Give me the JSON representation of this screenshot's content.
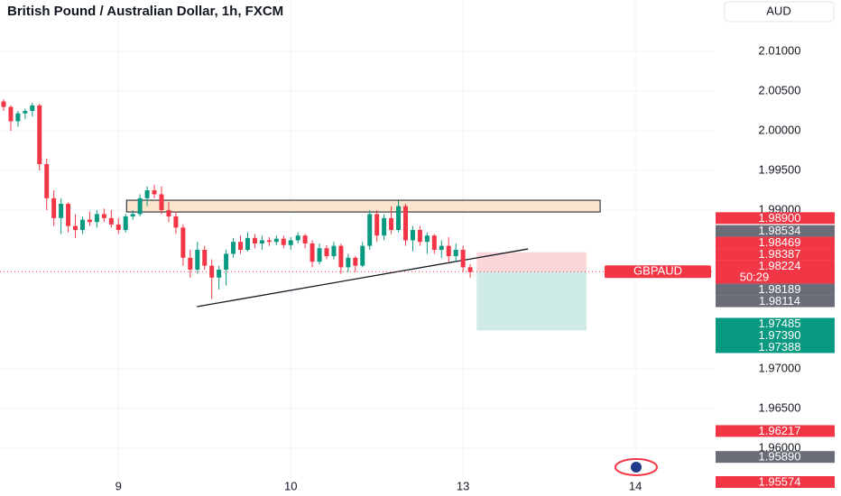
{
  "chart_data": {
    "type": "candlestick",
    "title": "British Pound / Australian Dollar, 1h, FXCM",
    "currency": "AUD",
    "symbol": "GBPAUD",
    "countdown": "50:29",
    "current_price": 1.98224,
    "up_color": "#089981",
    "down_color": "#f23645",
    "xlim": [
      -16.5,
      82.8
    ],
    "ylim": [
      1.95398,
      2.01648
    ],
    "xticks": [
      {
        "value": 0,
        "label": "9"
      },
      {
        "value": 24,
        "label": "10"
      },
      {
        "value": 48,
        "label": "13"
      },
      {
        "value": 72,
        "label": "14"
      }
    ],
    "yticks": [
      {
        "value": 2.01,
        "label": "2.01000"
      },
      {
        "value": 2.005,
        "label": "2.00500"
      },
      {
        "value": 2.0,
        "label": "2.00000"
      },
      {
        "value": 1.995,
        "label": "1.99500"
      },
      {
        "value": 1.99,
        "label": "1.99000"
      },
      {
        "value": 1.97,
        "label": "1.97000"
      },
      {
        "value": 1.965,
        "label": "1.96500"
      },
      {
        "value": 1.96,
        "label": "1.96000"
      }
    ],
    "grid": true,
    "x": [
      -16,
      -15,
      -14,
      -13,
      -12,
      -11,
      -10,
      -9,
      -8,
      -7,
      -6,
      -5,
      -4,
      -3,
      -2,
      -1,
      0,
      1,
      2,
      3,
      4,
      5,
      6,
      7,
      8,
      9,
      10,
      11,
      12,
      13,
      14,
      15,
      16,
      17,
      18,
      19,
      20,
      21,
      22,
      23,
      24,
      25,
      26,
      27,
      28,
      29,
      30,
      31,
      32,
      33,
      34,
      35,
      36,
      37,
      38,
      39,
      40,
      41,
      42,
      43,
      44,
      45,
      46,
      47,
      48,
      49
    ],
    "open": [
      2.0037,
      2.003,
      2.0012,
      2.0022,
      2.0025,
      2.0032,
      1.9958,
      1.9915,
      1.989,
      1.9908,
      1.988,
      1.9875,
      1.9888,
      1.9885,
      1.9895,
      1.989,
      1.9882,
      1.9875,
      1.9892,
      1.9895,
      1.9915,
      1.9925,
      1.992,
      1.99,
      1.9892,
      1.9878,
      1.984,
      1.9825,
      1.985,
      1.983,
      1.9815,
      1.9825,
      1.9845,
      1.986,
      1.985,
      1.9865,
      1.9858,
      1.9862,
      1.986,
      1.9864,
      1.9856,
      1.9862,
      1.9868,
      1.9858,
      1.9835,
      1.9852,
      1.9842,
      1.9855,
      1.9828,
      1.984,
      1.983,
      1.9855,
      1.9895,
      1.9868,
      1.989,
      1.9875,
      1.9905,
      1.9862,
      1.9875,
      1.986,
      1.9868,
      1.985,
      1.9855,
      1.9842,
      1.985,
      1.9828
    ],
    "high": [
      2.004,
      2.0032,
      2.0025,
      2.0028,
      2.0035,
      2.0034,
      1.9965,
      1.9925,
      1.9915,
      1.991,
      1.9895,
      1.9892,
      1.9898,
      1.99,
      1.9902,
      1.99,
      1.989,
      1.9895,
      1.99,
      1.992,
      1.993,
      1.9932,
      1.993,
      1.991,
      1.9898,
      1.9882,
      1.985,
      1.986,
      1.9855,
      1.9838,
      1.983,
      1.985,
      1.9865,
      1.9868,
      1.9872,
      1.987,
      1.9868,
      1.9866,
      1.9868,
      1.9868,
      1.9866,
      1.9872,
      1.987,
      1.9862,
      1.9858,
      1.9856,
      1.986,
      1.9858,
      1.9845,
      1.9842,
      1.986,
      1.99,
      1.99,
      1.9895,
      1.9905,
      1.9912,
      1.9908,
      1.988,
      1.988,
      1.9872,
      1.987,
      1.9862,
      1.9866,
      1.9858,
      1.9855,
      1.9832
    ],
    "low": [
      2.0025,
      2.0,
      2.0005,
      2.0015,
      2.0018,
      1.995,
      1.99,
      1.988,
      1.987,
      1.9872,
      1.9865,
      1.987,
      1.988,
      1.9878,
      1.9885,
      1.9878,
      1.987,
      1.9872,
      1.9888,
      1.9892,
      1.9905,
      1.9915,
      1.9895,
      1.9885,
      1.987,
      1.983,
      1.9815,
      1.982,
      1.9825,
      1.9788,
      1.98,
      1.9805,
      1.984,
      1.9845,
      1.9848,
      1.9852,
      1.985,
      1.9855,
      1.9856,
      1.9852,
      1.985,
      1.9858,
      1.9852,
      1.9828,
      1.9832,
      1.9838,
      1.9838,
      1.982,
      1.9822,
      1.9822,
      1.9828,
      1.985,
      1.986,
      1.9862,
      1.987,
      1.9872,
      1.9855,
      1.9848,
      1.9855,
      1.9845,
      1.9845,
      1.984,
      1.9835,
      1.9835,
      1.9822,
      1.9815
    ],
    "close": [
      2.003,
      2.0012,
      2.0022,
      2.0025,
      2.0032,
      1.9958,
      1.9915,
      1.989,
      1.9908,
      1.988,
      1.9875,
      1.9888,
      1.9885,
      1.9895,
      1.989,
      1.9882,
      1.9875,
      1.9892,
      1.9895,
      1.9915,
      1.9925,
      1.992,
      1.99,
      1.9892,
      1.9878,
      1.984,
      1.9825,
      1.985,
      1.983,
      1.9815,
      1.9825,
      1.9845,
      1.986,
      1.985,
      1.9865,
      1.9858,
      1.9862,
      1.986,
      1.9864,
      1.9856,
      1.9862,
      1.9868,
      1.9858,
      1.9835,
      1.9852,
      1.9842,
      1.9855,
      1.9828,
      1.984,
      1.983,
      1.9855,
      1.9895,
      1.9868,
      1.989,
      1.9875,
      1.9905,
      1.9862,
      1.9875,
      1.986,
      1.9868,
      1.985,
      1.9855,
      1.9842,
      1.985,
      1.9828,
      1.9822
    ],
    "zone": {
      "x": [
        1.13,
        67.1
      ],
      "y": [
        1.99125,
        1.98977
      ],
      "color": "#fce5cd"
    },
    "trendline": {
      "x": [
        10.93,
        57.05
      ],
      "y": [
        1.97784,
        1.98511
      ]
    },
    "position": {
      "x": [
        49.9,
        65.2
      ],
      "stop": 1.98469,
      "entry": 1.98224,
      "target": 1.97485
    },
    "price_labels": [
      {
        "value": 1.989,
        "label": "1.98900",
        "color": "#f23645"
      },
      {
        "value": 1.98534,
        "label": "1.98534",
        "color": "#6a6d78"
      },
      {
        "value": 1.98469,
        "label": "1.98469",
        "color": "#f23645"
      },
      {
        "value": 1.98387,
        "label": "1.98387",
        "color": "#f23645"
      },
      {
        "value": 1.98224,
        "label": "1.98224",
        "color": "#f23645",
        "extra": "50:29"
      },
      {
        "value": 1.98189,
        "label": "1.98189",
        "color": "#6a6d78"
      },
      {
        "value": 1.98114,
        "label": "1.98114",
        "color": "#6a6d78"
      },
      {
        "value": 1.97485,
        "label": "1.97485",
        "color": "#089981"
      },
      {
        "value": 1.9739,
        "label": "1.97390",
        "color": "#089981"
      },
      {
        "value": 1.97388,
        "label": "1.97388",
        "color": "#089981"
      },
      {
        "value": 1.96217,
        "label": "1.96217",
        "color": "#f23645"
      },
      {
        "value": 1.9589,
        "label": "1.95890",
        "color": "#6a6d78"
      },
      {
        "value": 1.95574,
        "label": "1.95574",
        "color": "#f23645"
      }
    ]
  }
}
